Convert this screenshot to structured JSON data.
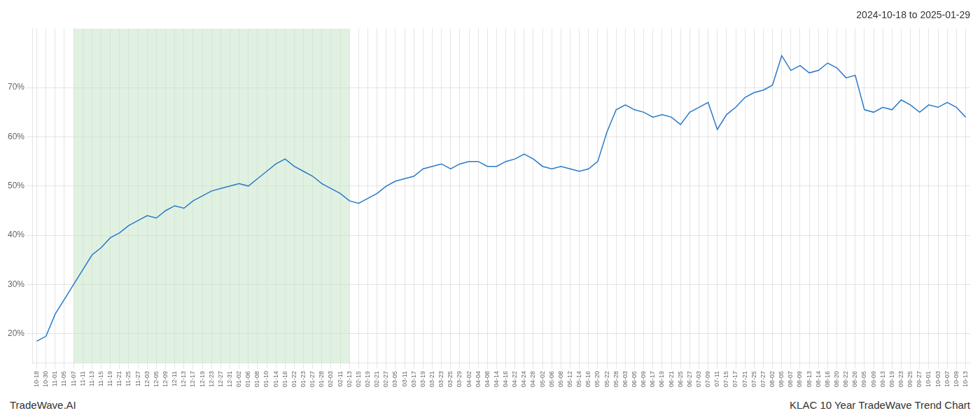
{
  "chart_data": {
    "type": "line",
    "title": "2024-10-18 to 2025-01-29",
    "annotations": [
      {
        "text": "TradeWave.AI",
        "position": "bottom-left"
      },
      {
        "text": "KLAC 10 Year TradeWave Trend Chart",
        "position": "bottom-right"
      }
    ],
    "categories": [
      "10-18",
      "10-30",
      "11-01",
      "11-05",
      "11-07",
      "11-11",
      "11-13",
      "11-15",
      "11-19",
      "11-21",
      "11-25",
      "11-27",
      "12-03",
      "12-05",
      "12-09",
      "12-11",
      "12-13",
      "12-17",
      "12-19",
      "12-23",
      "12-27",
      "12-31",
      "01-02",
      "01-06",
      "01-08",
      "01-10",
      "01-14",
      "01-16",
      "01-22",
      "01-23",
      "01-27",
      "01-28",
      "02-03",
      "02-11",
      "02-13",
      "02-15",
      "02-19",
      "02-21",
      "02-27",
      "03-05",
      "03-11",
      "03-17",
      "03-19",
      "03-21",
      "03-23",
      "03-25",
      "03-29",
      "04-02",
      "04-04",
      "04-08",
      "04-14",
      "04-16",
      "04-22",
      "04-24",
      "04-28",
      "05-02",
      "05-06",
      "05-08",
      "05-12",
      "05-14",
      "05-16",
      "05-20",
      "05-22",
      "05-28",
      "06-03",
      "06-05",
      "06-09",
      "06-17",
      "06-19",
      "06-21",
      "06-25",
      "06-27",
      "07-03",
      "07-09",
      "07-11",
      "07-15",
      "07-17",
      "07-21",
      "07-25",
      "07-27",
      "08-02",
      "08-05",
      "08-07",
      "08-09",
      "08-13",
      "08-14",
      "08-16",
      "08-20",
      "08-22",
      "08-26",
      "09-05",
      "09-09",
      "09-13",
      "09-19",
      "09-23",
      "09-25",
      "09-27",
      "10-01",
      "10-03",
      "10-07",
      "10-09",
      "10-13"
    ],
    "values": [
      18.5,
      19.5,
      24.0,
      27.0,
      30.0,
      33.0,
      36.0,
      37.5,
      39.5,
      40.5,
      42.0,
      43.0,
      44.0,
      43.5,
      45.0,
      46.0,
      45.5,
      47.0,
      48.0,
      49.0,
      49.5,
      50.0,
      50.5,
      50.0,
      51.5,
      53.0,
      54.5,
      55.5,
      54.0,
      53.0,
      52.0,
      50.5,
      49.5,
      48.5,
      47.0,
      46.5,
      47.5,
      48.5,
      50.0,
      51.0,
      51.5,
      52.0,
      53.5,
      54.0,
      54.5,
      53.5,
      54.5,
      55.0,
      55.0,
      54.0,
      54.0,
      55.0,
      55.5,
      56.5,
      55.5,
      54.0,
      53.5,
      54.0,
      53.5,
      53.0,
      53.5,
      55.0,
      61.0,
      65.5,
      66.5,
      65.5,
      65.0,
      64.0,
      64.5,
      64.0,
      62.5,
      65.0,
      66.0,
      67.0,
      61.5,
      64.5,
      66.0,
      68.0,
      69.0,
      69.5,
      70.5,
      76.5,
      73.5,
      74.5,
      73.0,
      73.5,
      75.0,
      74.0,
      72.0,
      72.5,
      65.5,
      65.0,
      66.0,
      65.5,
      67.5,
      66.5,
      65.0,
      66.5,
      66.0,
      67.0,
      66.0,
      64.0
    ],
    "color": "#2979c8",
    "shaded_span": {
      "from": "11-07",
      "to": "02-13",
      "color": "#c8e6c8"
    },
    "ylim": [
      14,
      82
    ],
    "yticks": [
      {
        "value": 20,
        "label": "20%"
      },
      {
        "value": 30,
        "label": "30%"
      },
      {
        "value": 40,
        "label": "40%"
      },
      {
        "value": 50,
        "label": "50%"
      },
      {
        "value": 60,
        "label": "60%"
      },
      {
        "value": 70,
        "label": "70%"
      }
    ],
    "grid": true
  }
}
